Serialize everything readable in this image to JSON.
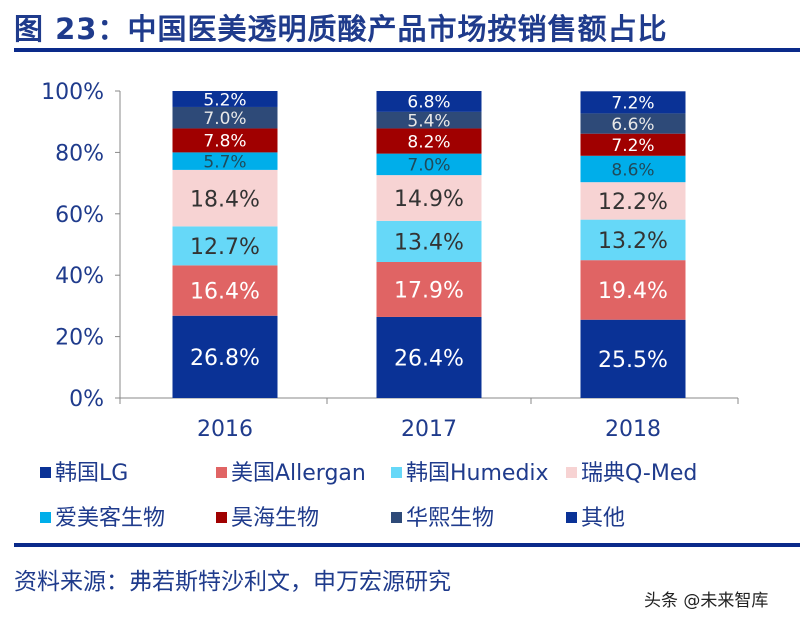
{
  "title": "图 23：中国医美透明质酸产品市场按销售额占比",
  "source": "资料来源：弗若斯特沙利文，申万宏源研究",
  "watermark": "头条 @未来智库",
  "chart_data": {
    "type": "bar",
    "stacked": true,
    "categories": [
      "2016",
      "2017",
      "2018"
    ],
    "ylim": [
      0,
      100
    ],
    "yticks": [
      "0%",
      "20%",
      "40%",
      "60%",
      "80%",
      "100%"
    ],
    "legend_position": "bottom",
    "grid": false,
    "series": [
      {
        "name": "韩国LG",
        "color": "#0A3296",
        "label_color": "#ffffff",
        "values": [
          26.8,
          26.4,
          25.5
        ]
      },
      {
        "name": "美国Allergan",
        "color": "#E06464",
        "label_color": "#ffffff",
        "values": [
          16.4,
          17.9,
          19.4
        ]
      },
      {
        "name": "韩国Humedix",
        "color": "#66D8F8",
        "label_color": "#333333",
        "values": [
          12.7,
          13.4,
          13.2
        ]
      },
      {
        "name": "瑞典Q-Med",
        "color": "#F7D3D3",
        "label_color": "#333333",
        "values": [
          18.4,
          14.9,
          12.2
        ]
      },
      {
        "name": "爱美客生物",
        "color": "#00AEEA",
        "label_color": "#1f4a5a",
        "values": [
          5.7,
          7.0,
          8.6
        ]
      },
      {
        "name": "昊海生物",
        "color": "#A00000",
        "label_color": "#ffffff",
        "values": [
          7.8,
          8.2,
          7.2
        ]
      },
      {
        "name": "华熙生物",
        "color": "#2E4A78",
        "label_color": "#e8e8e8",
        "values": [
          7.0,
          5.4,
          6.6
        ]
      },
      {
        "name": "其他",
        "color": "#0A3296",
        "label_color": "#ffffff",
        "values": [
          5.2,
          6.8,
          7.2
        ]
      }
    ]
  }
}
